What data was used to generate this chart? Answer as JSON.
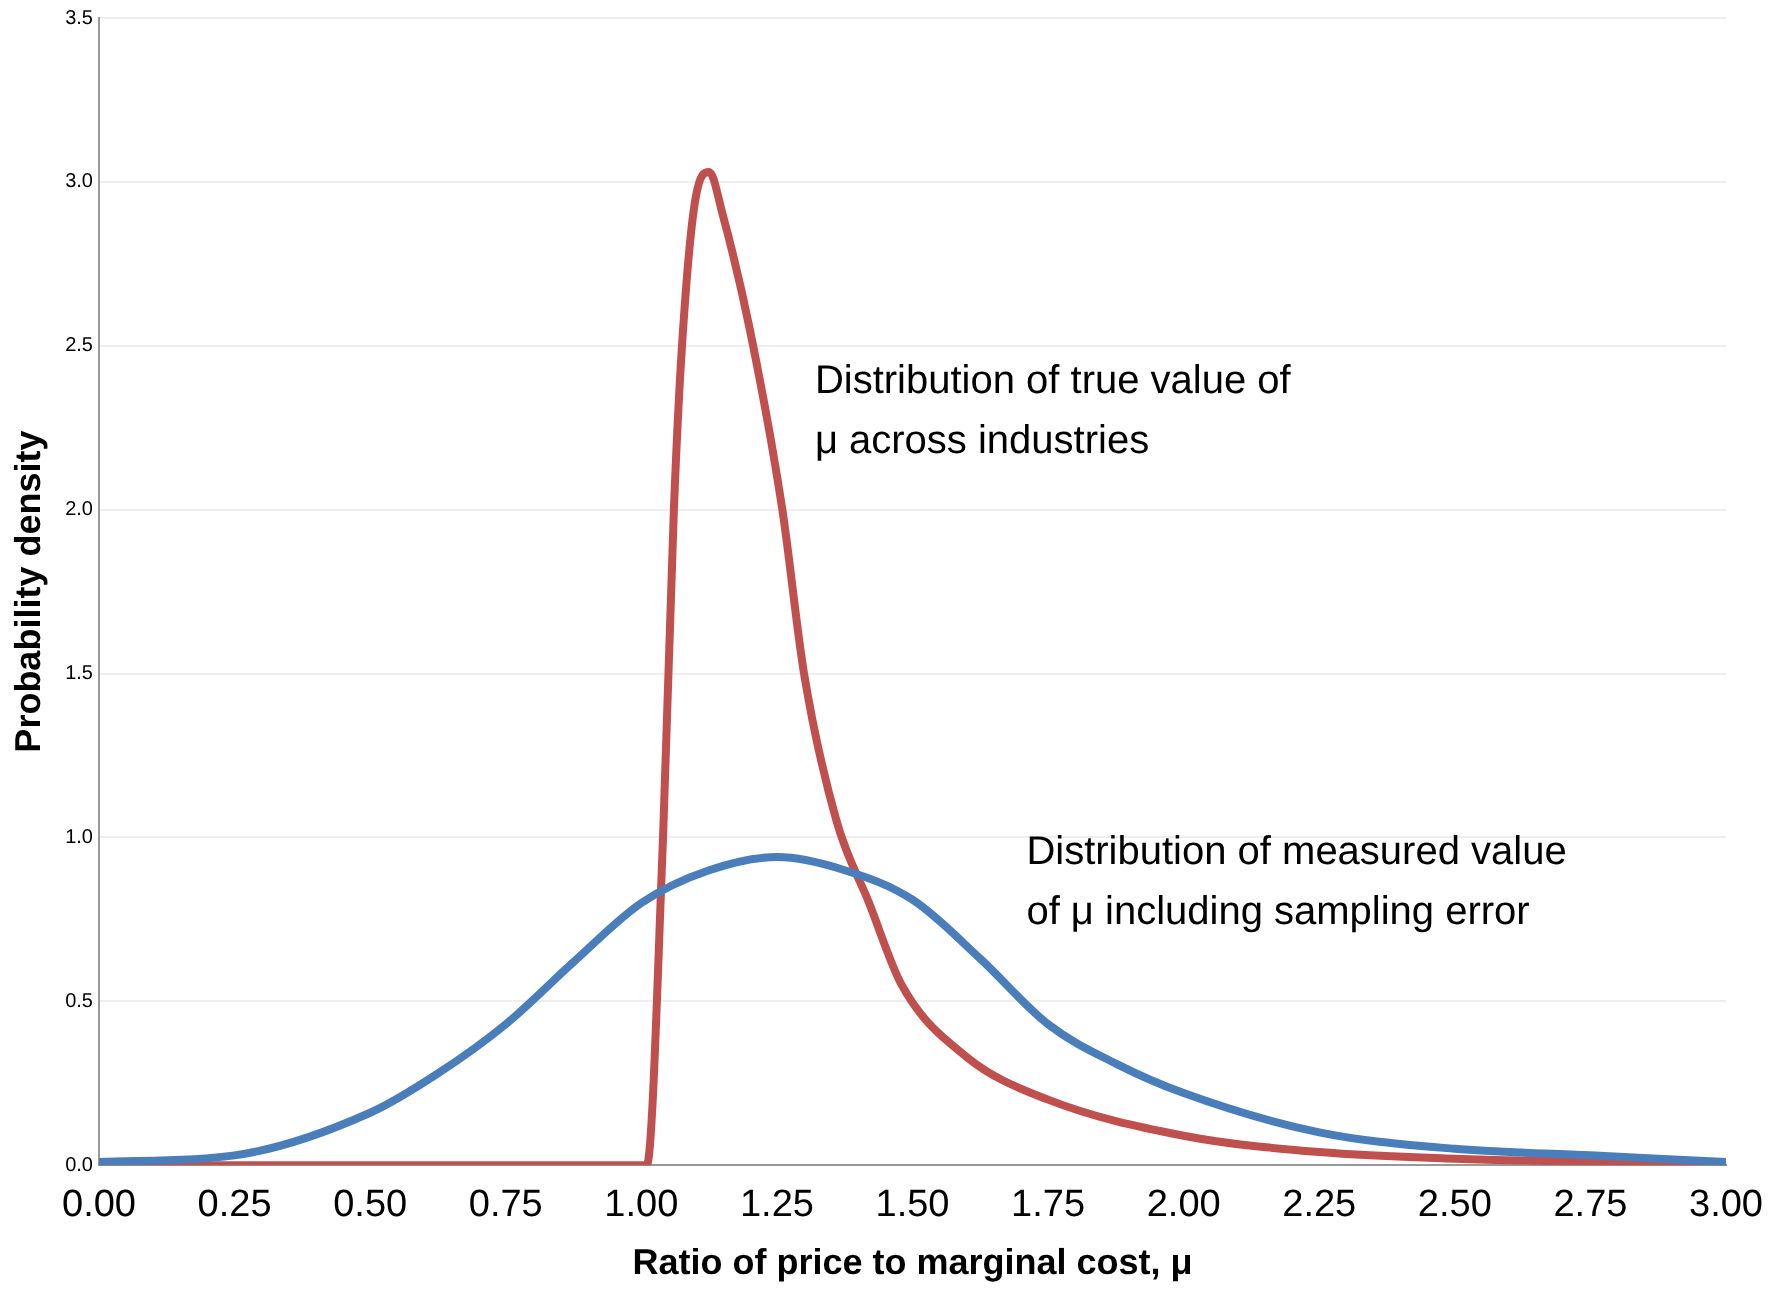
{
  "chart_data": {
    "type": "line",
    "xlabel": "Ratio of price to marginal cost, μ",
    "ylabel": "Probability density",
    "xlim": [
      0,
      3
    ],
    "ylim": [
      0,
      3.5
    ],
    "xticks": [
      {
        "value": 0,
        "label": "0.00"
      },
      {
        "value": 0.25,
        "label": "0.25"
      },
      {
        "value": 0.5,
        "label": "0.50"
      },
      {
        "value": 0.75,
        "label": "0.75"
      },
      {
        "value": 1,
        "label": "1.00"
      },
      {
        "value": 1.25,
        "label": "1.25"
      },
      {
        "value": 1.5,
        "label": "1.50"
      },
      {
        "value": 1.75,
        "label": "1.75"
      },
      {
        "value": 2,
        "label": "2.00"
      },
      {
        "value": 2.25,
        "label": "2.25"
      },
      {
        "value": 2.5,
        "label": "2.50"
      },
      {
        "value": 2.75,
        "label": "2.75"
      },
      {
        "value": 3,
        "label": "3.00"
      }
    ],
    "yticks": [
      {
        "value": 0,
        "label": "0.0"
      },
      {
        "value": 0.5,
        "label": "0.5"
      },
      {
        "value": 1,
        "label": "1.0"
      },
      {
        "value": 1.5,
        "label": "1.5"
      },
      {
        "value": 2,
        "label": "2.0"
      },
      {
        "value": 2.5,
        "label": "2.5"
      },
      {
        "value": 3,
        "label": "3.0"
      },
      {
        "value": 3.5,
        "label": "3.5"
      }
    ],
    "grid": "y",
    "legend": false,
    "marker": "none",
    "line_style": "solid",
    "series": [
      {
        "color": "#4a7ebb",
        "x": [
          0,
          0.25,
          0.5,
          0.625,
          0.75,
          0.875,
          1,
          1.125,
          1.25,
          1.375,
          1.5,
          1.625,
          1.75,
          1.875,
          2,
          2.25,
          2.5,
          2.75,
          3
        ],
        "values": [
          0.01,
          0.03,
          0.16,
          0.28,
          0.43,
          0.62,
          0.8,
          0.9,
          0.94,
          0.9,
          0.81,
          0.63,
          0.43,
          0.31,
          0.22,
          0.1,
          0.05,
          0.03,
          0.01
        ]
      },
      {
        "color": "#c0504d",
        "x": [
          0,
          1.01,
          1.04,
          1.06,
          1.075,
          1.1,
          1.125,
          1.15,
          1.2,
          1.26,
          1.3,
          1.36,
          1.42,
          1.48,
          1.6,
          1.75,
          2,
          2.25,
          2.5,
          3
        ],
        "values": [
          0,
          0,
          1,
          2,
          2.5,
          2.95,
          3.03,
          2.9,
          2.55,
          2,
          1.5,
          1.05,
          0.8,
          0.55,
          0.33,
          0.2,
          0.09,
          0.04,
          0.02,
          0.005
        ]
      }
    ],
    "annotations": [
      "Distribution of true value of\nμ across industries",
      "Distribution of measured value\nof μ including sampling error"
    ]
  }
}
